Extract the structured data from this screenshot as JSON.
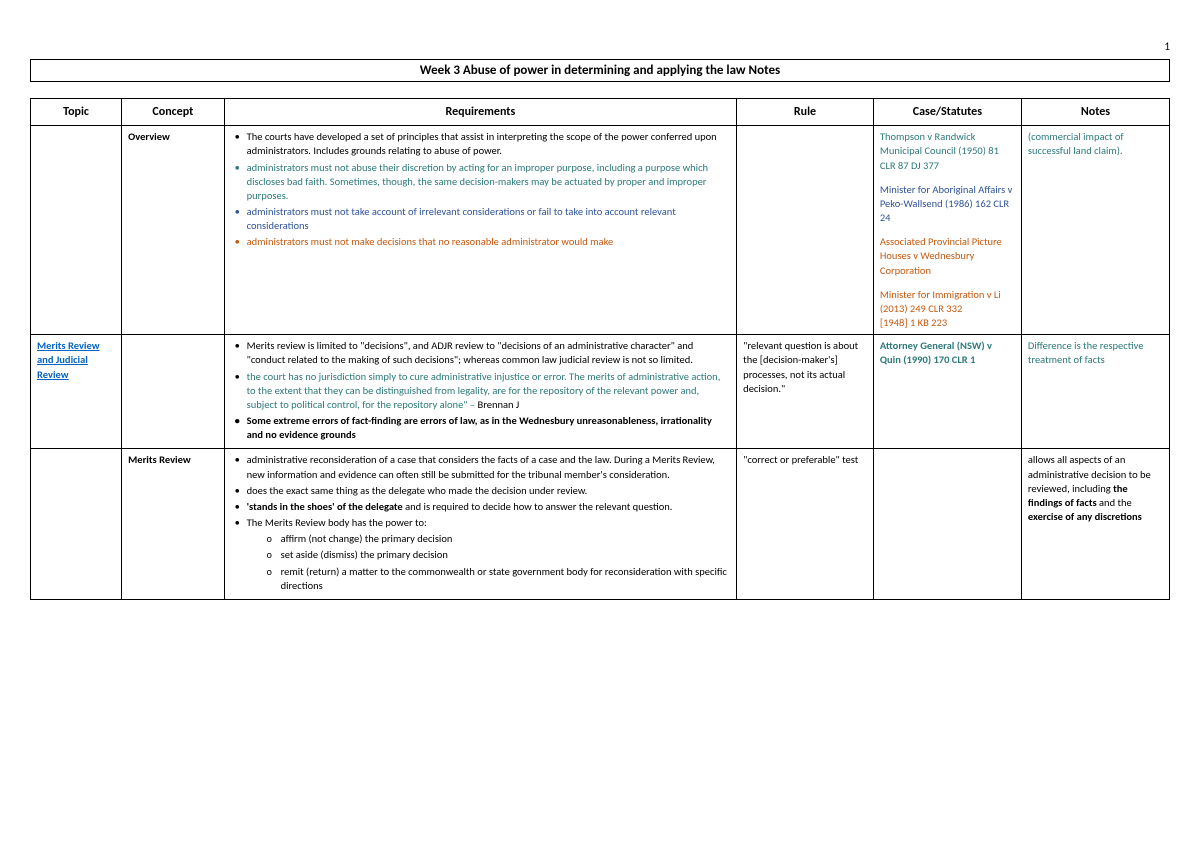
{
  "page_number": "1",
  "title": "Week 3 Abuse of power in determining and applying the law Notes",
  "colors": {
    "black": "#000000",
    "teal": "#2e7a7a",
    "blue": "#2f5496",
    "orange": "#c45a11",
    "link": "#0563c1"
  },
  "headers": {
    "topic": "Topic",
    "concept": "Concept",
    "requirements": "Requirements",
    "rule": "Rule",
    "case": "Case/Statutes",
    "notes": "Notes"
  },
  "rows": {
    "r1": {
      "topic": "",
      "concept": "Overview",
      "req": {
        "b1": "The courts have developed a set of principles that assist in interpreting the scope of the power conferred upon administrators. Includes grounds relating to abuse of power.",
        "b2": "administrators must not abuse their discretion by acting for an improper purpose, including a purpose which discloses bad faith. Sometimes, though, the same decision-makers may be actuated by proper and improper purposes.",
        "b3": "administrators must not take account of irrelevant considerations or fail to take into account relevant considerations",
        "b4": "administrators must not make decisions that no reasonable administrator would make"
      },
      "rule": "",
      "cases": {
        "c1": "Thompson v Randwick Municipal Council (1950) 81 CLR 87 DJ 377",
        "c2": "Minister for Aboriginal Affairs v Peko-Wallsend (1986) 162 CLR 24",
        "c3": "Associated Provincial Picture Houses v Wednesbury Corporation",
        "c4a": "Minister for Immigration v Li (2013) 249 CLR 332",
        "c4b": "[1948] 1 KB 223"
      },
      "notes": "(commercial impact of successful land claim)."
    },
    "r2": {
      "topic": "Merits Review and Judicial Review",
      "concept": "",
      "req": {
        "b1": "Merits review is limited to \"decisions\", and ADJR review to \"decisions of an administrative character\" and \"conduct related to the making of such decisions\"; whereas common law judicial review is not so limited.",
        "b2a": "the court has no jurisdiction simply to cure administrative injustice or error. The merits of administrative action, to the extent that they can be distinguished from legality, are for the repository of the relevant power and, subject to political control, for the repository alone\" – ",
        "b2b": "Brennan J",
        "b3": "Some extreme errors of fact-finding are errors of law, as in the Wednesbury unreasonableness, irrationality and no evidence grounds"
      },
      "rule": "\"relevant question is about the [decision-maker's] processes, not its actual decision.\"",
      "cases": {
        "c1": "Attorney General (NSW) v Quin (1990) 170 CLR 1"
      },
      "notes": "Difference is the respective treatment of facts"
    },
    "r3": {
      "topic": "",
      "concept": "Merits Review",
      "req": {
        "b1": "administrative reconsideration of a case that considers the facts of a case and the law. During a Merits Review, new information and evidence can often still be submitted for the tribunal member's consideration.",
        "b2": "does the exact same thing as the delegate who made the decision under review.",
        "b3a": "'stands in the shoes' of the delegate",
        "b3b": " and is required to decide how to answer the relevant question.",
        "b4": "The Merits Review body has the power to:",
        "s1": "affirm (not change) the primary decision",
        "s2": "set aside (dismiss) the primary decision",
        "s3": "remit (return) a matter to the commonwealth or state government body for reconsideration with specific directions"
      },
      "rule": "\"correct or preferable\" test",
      "cases": "",
      "notes_a": "allows all aspects of an administrative decision to be reviewed, including ",
      "notes_b": "the findings of facts",
      "notes_c": " and the ",
      "notes_d": "exercise of any discretions"
    }
  }
}
